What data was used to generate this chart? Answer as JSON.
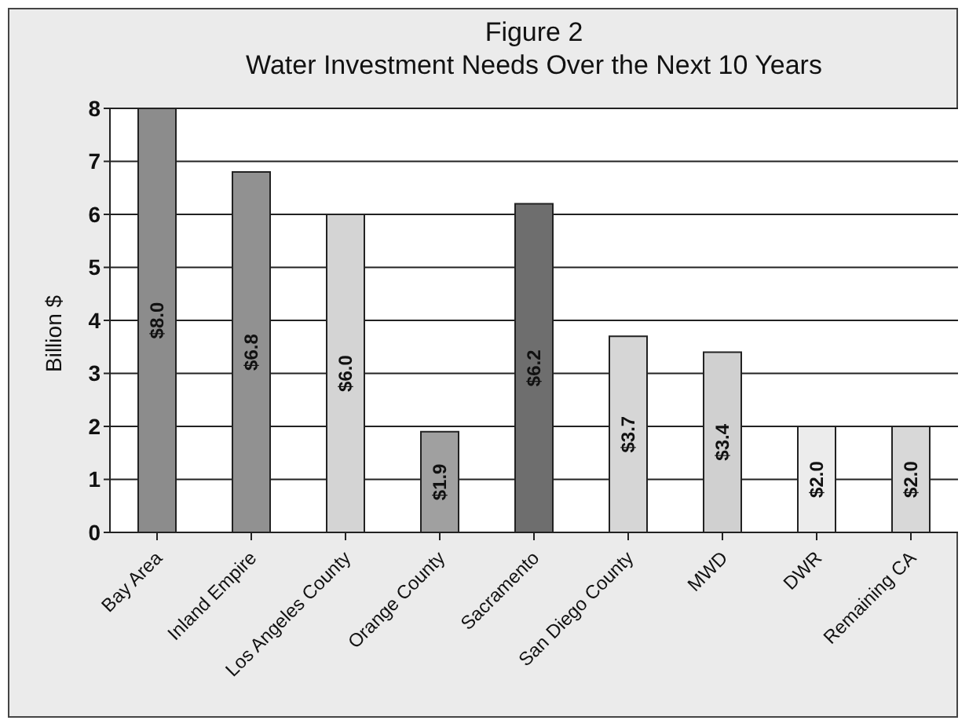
{
  "chart_data": {
    "type": "bar",
    "title": "Figure 2\nWater Investment Needs Over the Next 10 Years",
    "ylabel": "Billion $",
    "categories": [
      "Bay Area",
      "Inland Empire",
      "Los Angeles County",
      "Orange County",
      "Sacramento",
      "San Diego County",
      "MWD",
      "DWR",
      "Remaining CA"
    ],
    "values": [
      8.0,
      6.8,
      6.0,
      1.9,
      6.2,
      3.7,
      3.4,
      2.0,
      2.0
    ],
    "colors": [
      "#8c8c8c",
      "#919191",
      "#d4d4d4",
      "#a0a0a0",
      "#6e6e6e",
      "#d6d6d6",
      "#d0d0d0",
      "#ececec",
      "#d8d8d8"
    ],
    "value_labels": [
      "$8.0",
      "$6.8",
      "$6.0",
      "$1.9",
      "$6.2",
      "$3.7",
      "$3.4",
      "$2.0",
      "$2.0"
    ],
    "ylim": [
      0,
      8
    ],
    "yticks": [
      0,
      1,
      2,
      3,
      4,
      5,
      6,
      7,
      8
    ],
    "grid": "y"
  }
}
